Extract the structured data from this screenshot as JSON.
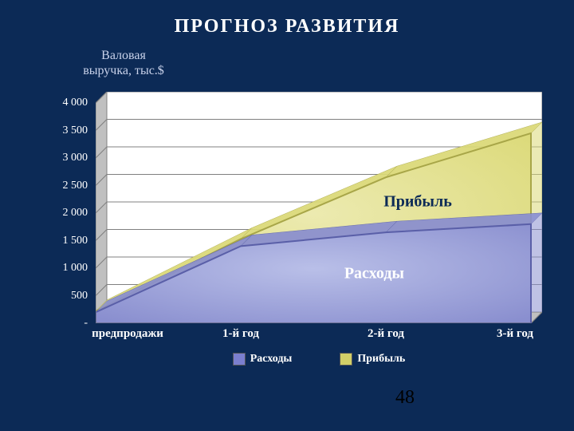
{
  "slide": {
    "background_color": "#0c2a56",
    "title": "ПРОГНОЗ  РАЗВИТИЯ",
    "title_color": "#ffffff",
    "title_fontsize": 24,
    "page_number": "48",
    "page_number_color": "#000000",
    "page_number_fontsize": 24
  },
  "chart": {
    "type": "area-stacked",
    "y_axis_title": "Валовая\nвыручка, тыс.$",
    "y_axis_title_color": "#c9d2ea",
    "y_axis_title_fontsize": 16,
    "axis_label_color": "#ffffff",
    "axis_label_fontsize": 14,
    "x_label_fontsize": 15,
    "plot_background": "#ffffff",
    "plot_border_color": "#808080",
    "grid_color": "#808080",
    "grid_width": 1,
    "floor_depth": 14,
    "floor_fill": "#c0c0c0",
    "floor_side": "#808080",
    "ylim": [
      0,
      4000
    ],
    "ytick_step": 500,
    "ytick_labels": [
      "-",
      "500",
      "1 000",
      "1 500",
      "2 000",
      "2 500",
      "3 000",
      "3 500",
      "4 000"
    ],
    "x_categories": [
      "предпродажи",
      "1-й год",
      "2-й год",
      "3-й год"
    ],
    "series": [
      {
        "name": "Расходы",
        "values": [
          200,
          1400,
          1650,
          1800
        ],
        "fill": "#8a8fcf",
        "fill_glow": "#b9bfe8",
        "stroke": "#5a5fa8",
        "label_text": "Расходы",
        "label_color": "#ffffff",
        "label_fontsize": 20,
        "label_pos_x": 0.64,
        "label_pos_y": 900,
        "legend_swatch": "#7b7fcf"
      },
      {
        "name": "Прибыль",
        "values": [
          20,
          130,
          1000,
          1650
        ],
        "fill": "#dbd977",
        "fill_glow": "#eceab0",
        "stroke": "#a8a648",
        "label_text": "Прибыль",
        "label_color": "#0c2a56",
        "label_fontsize": 20,
        "label_pos_x": 0.74,
        "label_pos_y": 2200,
        "legend_swatch": "#d2cf68"
      }
    ],
    "area_line_width": 2,
    "legend_label_color": "#ffffff",
    "legend_fontsize": 14
  }
}
